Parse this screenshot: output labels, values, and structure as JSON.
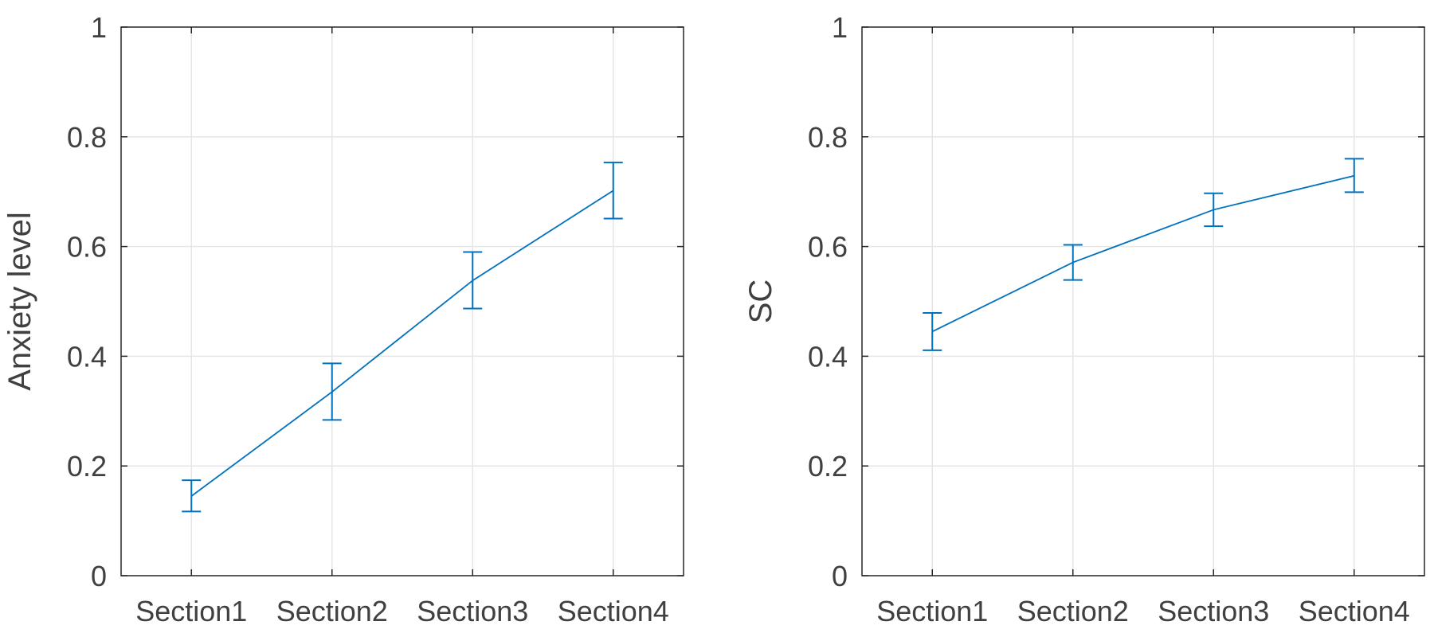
{
  "chart_data": [
    {
      "type": "line",
      "title": "",
      "xlabel": "",
      "ylabel": "Anxiety level",
      "categories": [
        "Section1",
        "Section2",
        "Section3",
        "Section4"
      ],
      "series": [
        {
          "name": "Anxiety level",
          "values": [
            0.145,
            0.335,
            0.538,
            0.702
          ],
          "error_low": [
            0.117,
            0.284,
            0.487,
            0.651
          ],
          "error_high": [
            0.174,
            0.387,
            0.59,
            0.753
          ]
        }
      ],
      "ylim": [
        0,
        1
      ],
      "yticks": [
        0,
        0.2,
        0.4,
        0.6,
        0.8,
        1
      ],
      "ytick_labels": [
        "0",
        "0.2",
        "0.4",
        "0.6",
        "0.8",
        "1"
      ],
      "grid": true,
      "color": "#0072BD"
    },
    {
      "type": "line",
      "title": "",
      "xlabel": "",
      "ylabel": "SC",
      "categories": [
        "Section1",
        "Section2",
        "Section3",
        "Section4"
      ],
      "series": [
        {
          "name": "SC",
          "values": [
            0.445,
            0.571,
            0.667,
            0.729
          ],
          "error_low": [
            0.411,
            0.539,
            0.637,
            0.699
          ],
          "error_high": [
            0.479,
            0.603,
            0.697,
            0.76
          ]
        }
      ],
      "ylim": [
        0,
        1
      ],
      "yticks": [
        0,
        0.2,
        0.4,
        0.6,
        0.8,
        1
      ],
      "ytick_labels": [
        "0",
        "0.2",
        "0.4",
        "0.6",
        "0.8",
        "1"
      ],
      "grid": true,
      "color": "#0072BD"
    }
  ]
}
